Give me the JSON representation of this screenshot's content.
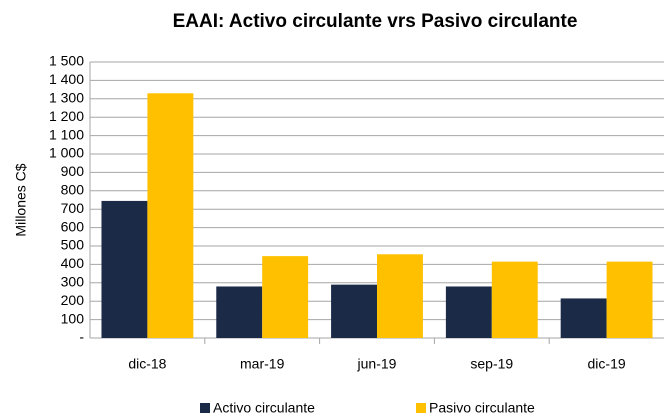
{
  "chart_data": {
    "type": "bar",
    "title": "EAAI: Activo circulante vrs Pasivo circulante",
    "y_label": "Millones C$",
    "categories": [
      "dic-18",
      "mar-19",
      "jun-19",
      "sep-19",
      "dic-19"
    ],
    "series": [
      {
        "name": "Activo circulante",
        "color": "#1b2a47",
        "values": [
          745,
          280,
          290,
          280,
          215
        ]
      },
      {
        "name": "Pasivo circulante",
        "color": "#ffc000",
        "values": [
          1330,
          445,
          455,
          415,
          415
        ]
      }
    ],
    "ylim": [
      0,
      1500
    ],
    "yticks": [
      {
        "value": 0,
        "label": "-"
      },
      100,
      200,
      300,
      400,
      500,
      600,
      700,
      800,
      900,
      {
        "value": 1000,
        "label": "1 000"
      },
      {
        "value": 1100,
        "label": "1 100"
      },
      {
        "value": 1200,
        "label": "1 200"
      },
      {
        "value": 1300,
        "label": "1 300"
      },
      {
        "value": 1400,
        "label": "1 400"
      },
      {
        "value": 1500,
        "label": "1 500"
      }
    ],
    "grid": true,
    "legend": "bottom"
  }
}
